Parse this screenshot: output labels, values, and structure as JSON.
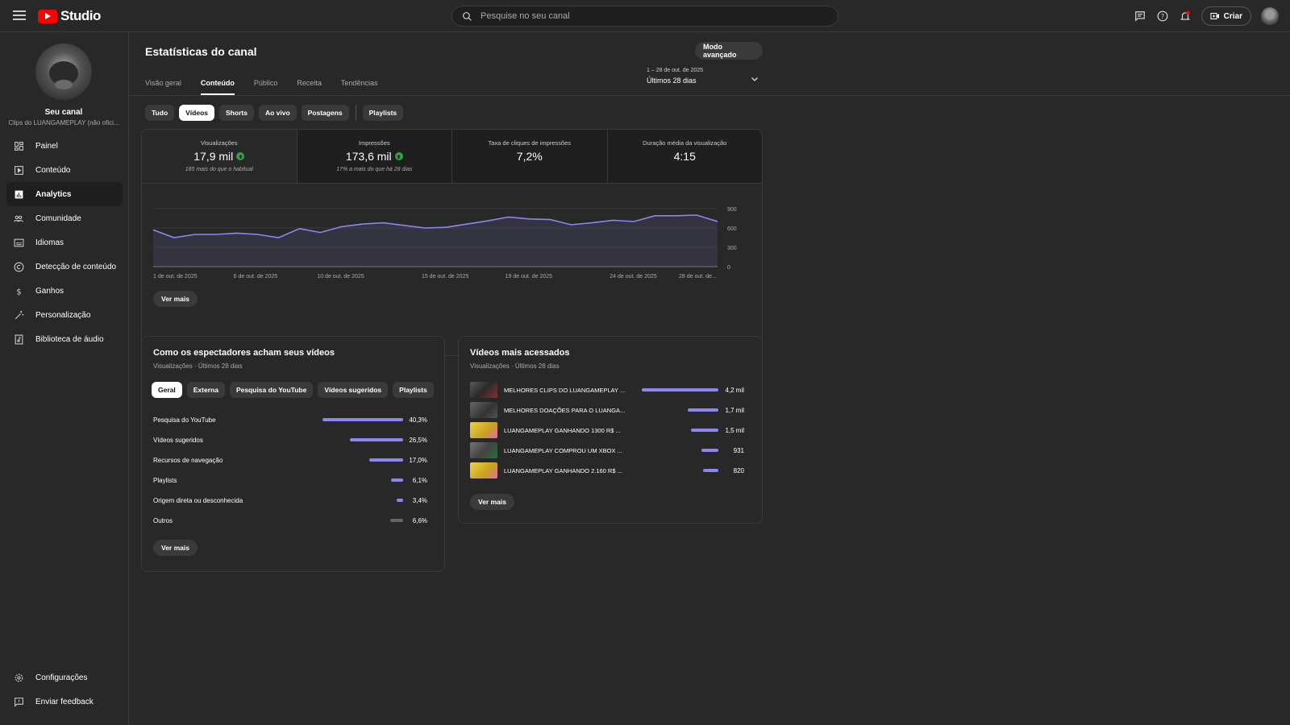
{
  "app": {
    "logo_text": "Studio"
  },
  "search": {
    "placeholder": "Pesquise no seu canal"
  },
  "topbar": {
    "create_label": "Criar"
  },
  "channel": {
    "name": "Seu canal",
    "subtitle": "Clips do LUANGAMEPLAY (não ofici..."
  },
  "sidebar": {
    "items": [
      {
        "label": "Painel",
        "icon": "dashboard-icon"
      },
      {
        "label": "Conteúdo",
        "icon": "content-icon"
      },
      {
        "label": "Analytics",
        "icon": "analytics-icon",
        "active": true
      },
      {
        "label": "Comunidade",
        "icon": "community-icon"
      },
      {
        "label": "Idiomas",
        "icon": "subtitles-icon"
      },
      {
        "label": "Detecção de conteúdo",
        "icon": "copyright-icon"
      },
      {
        "label": "Ganhos",
        "icon": "dollar-icon"
      },
      {
        "label": "Personalização",
        "icon": "magic-wand-icon"
      },
      {
        "label": "Biblioteca de áudio",
        "icon": "audio-library-icon"
      }
    ],
    "bottom": [
      {
        "label": "Configurações",
        "icon": "gear-icon"
      },
      {
        "label": "Enviar feedback",
        "icon": "feedback-icon"
      }
    ]
  },
  "page": {
    "title": "Estatísticas do canal",
    "advanced_label": "Modo avançado",
    "date_top": "1 – 28 de out. de 2025",
    "date_main": "Últimos 28 dias",
    "tabs": [
      "Visão geral",
      "Conteúdo",
      "Público",
      "Receita",
      "Tendências"
    ],
    "active_tab": "Conteúdo",
    "chips": [
      "Tudo",
      "Vídeos",
      "Shorts",
      "Ao vivo",
      "Postagens",
      "Playlists"
    ],
    "active_chip": "Vídeos"
  },
  "metrics": [
    {
      "label": "Visualizações",
      "value": "17,9 mil",
      "up": true,
      "note": "185 mais do que o habitual"
    },
    {
      "label": "Impressões",
      "value": "173,6 mil",
      "up": true,
      "note": "17% a mais do que há 28 dias"
    },
    {
      "label": "Taxa de cliques de impressões",
      "value": "7,2%",
      "up": false,
      "note": ""
    },
    {
      "label": "Duração média da visualização",
      "value": "4:15",
      "up": false,
      "note": ""
    }
  ],
  "chart_data": {
    "type": "area",
    "x_tick_labels": [
      "1 de out. de 2025",
      "6 de out. de 2025",
      "10 de out. de 2025",
      "15 de out. de 2025",
      "19 de out. de 2025",
      "24 de out. de 2025",
      "28 de out. de..."
    ],
    "y_tick_labels": [
      "900",
      "600",
      "300",
      "0"
    ],
    "ylim": [
      0,
      900
    ],
    "series": [
      {
        "values": [
          570,
          450,
          500,
          500,
          520,
          500,
          450,
          590,
          530,
          620,
          660,
          680,
          640,
          600,
          610,
          660,
          710,
          770,
          740,
          730,
          650,
          680,
          720,
          700,
          790,
          790,
          800,
          700
        ]
      }
    ],
    "grid": true
  },
  "chart_more_label": "Ver mais",
  "sources": {
    "title": "Como os espectadores acham seus vídeos",
    "subtitle": "Visualizações · Últimos 28 dias",
    "chips": [
      "Geral",
      "Externa",
      "Pesquisa do YouTube",
      "Vídeos sugeridos",
      "Playlists"
    ],
    "active_chip": "Geral",
    "rows": [
      {
        "name": "Pesquisa do YouTube",
        "value": "40,3%",
        "pct": 40.3
      },
      {
        "name": "Vídeos sugeridos",
        "value": "26,5%",
        "pct": 26.5
      },
      {
        "name": "Recursos de navegação",
        "value": "17,0%",
        "pct": 17.0
      },
      {
        "name": "Playlists",
        "value": "6,1%",
        "pct": 6.1
      },
      {
        "name": "Origem direta ou desconhecida",
        "value": "3,4%",
        "pct": 3.4
      },
      {
        "name": "Outros",
        "value": "6,6%",
        "pct": 6.6
      }
    ],
    "more_label": "Ver mais"
  },
  "top_videos": {
    "title": "Vídeos mais acessados",
    "subtitle": "Visualizações · Últimos 28 dias",
    "rows": [
      {
        "title": "MELHORES CLIPS DO LUANGAMEPLAY ...",
        "value": "4,2 mil",
        "views": 4200
      },
      {
        "title": "MELHORES DOAÇÕES PARA O LUANGA...",
        "value": "1,7 mil",
        "views": 1700
      },
      {
        "title": "LUANGAMEPLAY GANHANDO 1300 R$ ...",
        "value": "1,5 mil",
        "views": 1500
      },
      {
        "title": "LUANGAMEPLAY COMPROU UM XBOX ...",
        "value": "931",
        "views": 931
      },
      {
        "title": "LUANGAMEPLAY GANHANDO 2.160 R$ ...",
        "value": "820",
        "views": 820
      }
    ],
    "more_label": "Ver mais"
  },
  "colors": {
    "accent": "#8c87f0",
    "up": "#2ba640",
    "bg": "#282828"
  }
}
